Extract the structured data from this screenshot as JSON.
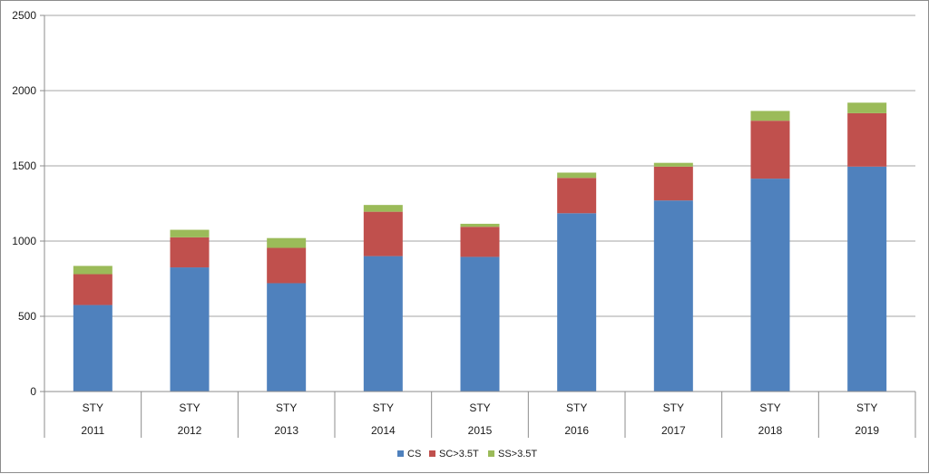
{
  "chart_data": {
    "type": "bar",
    "stacked": true,
    "categories": [
      "STY",
      "STY",
      "STY",
      "STY",
      "STY",
      "STY",
      "STY",
      "STY",
      "STY"
    ],
    "category_groups": [
      "2011",
      "2012",
      "2013",
      "2014",
      "2015",
      "2016",
      "2017",
      "2018",
      "2019"
    ],
    "series": [
      {
        "name": "CS",
        "color": "#4f81bd",
        "values": [
          575,
          825,
          720,
          900,
          895,
          1185,
          1270,
          1415,
          1495
        ]
      },
      {
        "name": "SC>3.5T",
        "color": "#c0504d",
        "values": [
          205,
          200,
          235,
          295,
          200,
          235,
          225,
          385,
          355
        ]
      },
      {
        "name": "SS>3.5T",
        "color": "#9bbb59",
        "values": [
          55,
          50,
          65,
          45,
          20,
          35,
          25,
          65,
          70
        ]
      }
    ],
    "ylim": [
      0,
      2500
    ],
    "yticks": [
      "0",
      "500",
      "1000",
      "1500",
      "2000",
      "2500"
    ],
    "grid": true,
    "legend_position": "bottom"
  }
}
